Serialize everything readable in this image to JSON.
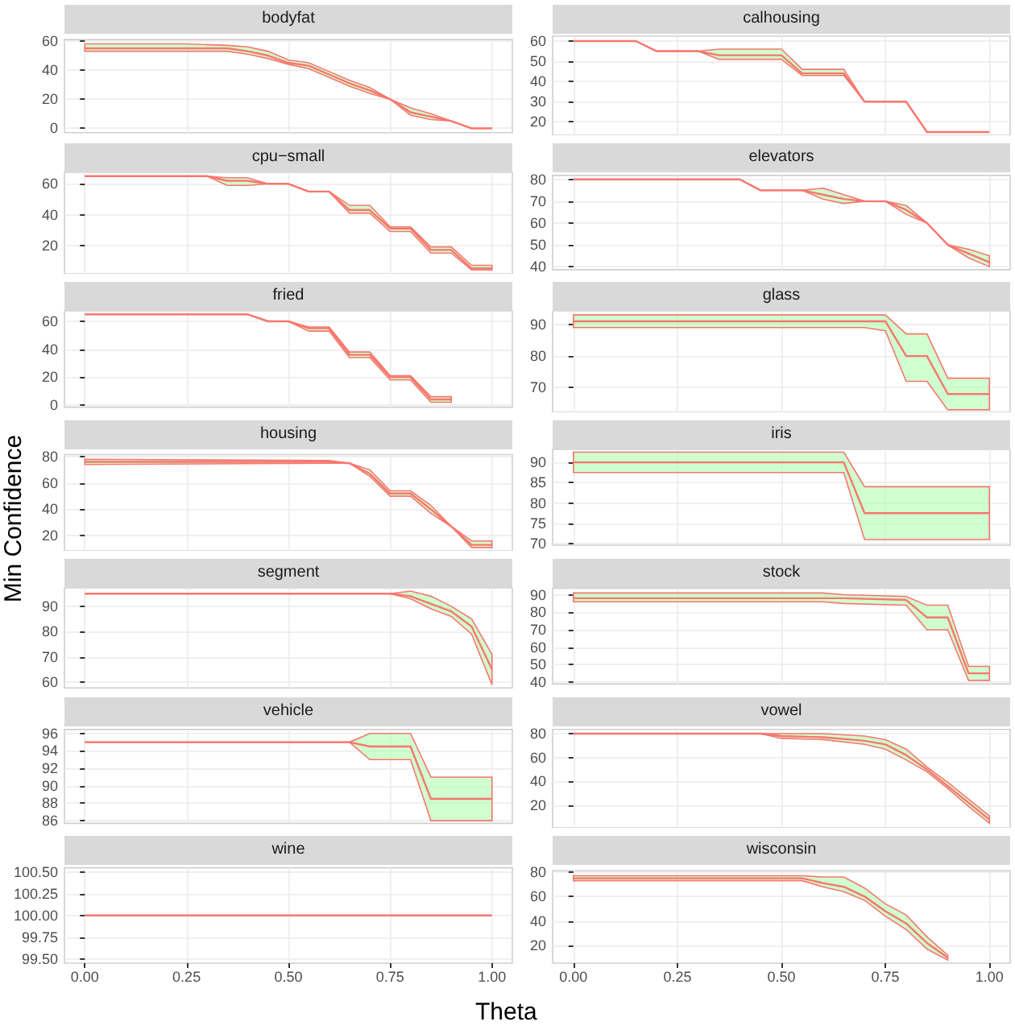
{
  "chart_data": [
    {
      "type": "line",
      "title": "bodyfat",
      "x": [
        0,
        0.25,
        0.35,
        0.4,
        0.45,
        0.5,
        0.55,
        0.6,
        0.65,
        0.7,
        0.75,
        0.8,
        0.85,
        0.9,
        0.95,
        1
      ],
      "series": [
        {
          "color": "#f8766d",
          "values": [
            55,
            55,
            55,
            53,
            50,
            45,
            43,
            37,
            31,
            26,
            20,
            11,
            8,
            5,
            0,
            0
          ],
          "lower": [
            53,
            53,
            53,
            51,
            48,
            44,
            41,
            35,
            29,
            24,
            20,
            9,
            6,
            5,
            0,
            0
          ],
          "upper": [
            58,
            58,
            57,
            56,
            53,
            47,
            45,
            39,
            33,
            28,
            20,
            14,
            10,
            5,
            0,
            0
          ]
        }
      ],
      "xlim": [
        -0.05,
        1.05
      ],
      "xticks": [
        0,
        0.25,
        0.5,
        0.75,
        1
      ],
      "ylim": [
        -3,
        61
      ],
      "yticks": [
        0,
        20,
        40,
        60
      ],
      "grid": true,
      "tick_labels": "y"
    },
    {
      "type": "line",
      "title": "calhousing",
      "x": [
        0,
        0.15,
        0.2,
        0.3,
        0.35,
        0.5,
        0.55,
        0.65,
        0.7,
        0.8,
        0.85,
        1
      ],
      "series": [
        {
          "color": "#f8766d",
          "values": [
            60,
            60,
            55,
            55,
            53,
            53,
            44,
            44,
            30,
            30,
            15,
            15
          ],
          "lower": [
            60,
            60,
            55,
            55,
            51,
            51,
            43,
            43,
            30,
            30,
            15,
            15
          ],
          "upper": [
            60,
            60,
            55,
            55,
            56,
            56,
            46,
            46,
            30,
            30,
            15,
            15
          ]
        }
      ],
      "xlim": [
        -0.05,
        1.05
      ],
      "xticks": [
        0,
        0.25,
        0.5,
        0.75,
        1
      ],
      "ylim": [
        13.4,
        62.5
      ],
      "yticks": [
        20,
        30,
        40,
        50,
        60
      ],
      "grid": true,
      "tick_labels": "y"
    },
    {
      "type": "line",
      "title": "cpu−small",
      "x": [
        0,
        0.3,
        0.35,
        0.4,
        0.45,
        0.5,
        0.55,
        0.6,
        0.65,
        0.7,
        0.75,
        0.8,
        0.85,
        0.9,
        0.95,
        1
      ],
      "series": [
        {
          "color": "#f8766d",
          "values": [
            65,
            65,
            62,
            62,
            60,
            60,
            55,
            55,
            43,
            43,
            31,
            31,
            17,
            17,
            5,
            5
          ],
          "lower": [
            65,
            65,
            59,
            59,
            60,
            60,
            55,
            55,
            41,
            41,
            29,
            29,
            15,
            15,
            4,
            4
          ],
          "upper": [
            65,
            65,
            64,
            64,
            60,
            60,
            55,
            55,
            46,
            46,
            32,
            32,
            19,
            19,
            7,
            7
          ]
        }
      ],
      "xlim": [
        -0.05,
        1.05
      ],
      "xticks": [
        0,
        0.25,
        0.5,
        0.75,
        1
      ],
      "ylim": [
        1.5,
        67.5
      ],
      "yticks": [
        20,
        40,
        60
      ],
      "grid": true,
      "tick_labels": "y"
    },
    {
      "type": "line",
      "title": "elevators",
      "x": [
        0,
        0.4,
        0.45,
        0.55,
        0.6,
        0.65,
        0.7,
        0.75,
        0.8,
        0.85,
        0.9,
        0.95,
        1
      ],
      "series": [
        {
          "color": "#f8766d",
          "values": [
            80,
            80,
            75,
            75,
            73,
            71,
            70,
            70,
            66,
            60,
            50,
            46,
            42
          ],
          "lower": [
            80,
            80,
            75,
            75,
            71,
            69,
            70,
            70,
            64,
            60,
            50,
            44,
            40
          ],
          "upper": [
            80,
            80,
            75,
            75,
            76,
            73,
            70,
            70,
            68,
            60,
            50,
            48,
            45
          ]
        }
      ],
      "xlim": [
        -0.05,
        1.05
      ],
      "xticks": [
        0,
        0.25,
        0.5,
        0.75,
        1
      ],
      "ylim": [
        38.6,
        81.8
      ],
      "yticks": [
        40,
        50,
        60,
        70,
        80
      ],
      "grid": true,
      "tick_labels": "y"
    },
    {
      "type": "line",
      "title": "fried",
      "x": [
        0,
        0.4,
        0.45,
        0.5,
        0.55,
        0.6,
        0.65,
        0.7,
        0.75,
        0.8,
        0.85,
        0.9
      ],
      "series": [
        {
          "color": "#f8766d",
          "values": [
            65,
            65,
            60,
            60,
            55,
            55,
            36,
            36,
            20,
            20,
            4,
            4
          ],
          "lower": [
            65,
            65,
            60,
            60,
            53,
            53,
            34,
            34,
            18,
            18,
            2,
            2
          ],
          "upper": [
            65,
            65,
            60,
            60,
            56,
            56,
            38,
            38,
            21,
            21,
            6,
            6
          ]
        }
      ],
      "xlim": [
        -0.05,
        1.05
      ],
      "xticks": [
        0,
        0.25,
        0.5,
        0.75,
        1
      ],
      "ylim": [
        -1.5,
        67.5
      ],
      "yticks": [
        0,
        20,
        40,
        60
      ],
      "grid": true,
      "tick_labels": "y"
    },
    {
      "type": "line",
      "title": "glass",
      "x": [
        0,
        0.7,
        0.75,
        0.8,
        0.85,
        0.9,
        1
      ],
      "series": [
        {
          "color": "#f8766d",
          "values": [
            91,
            91,
            91,
            80,
            80,
            68,
            68
          ],
          "lower": [
            89,
            89,
            88,
            72,
            72,
            63,
            63
          ],
          "upper": [
            93,
            93,
            93,
            87,
            87,
            73,
            73
          ]
        }
      ],
      "xlim": [
        -0.05,
        1.05
      ],
      "xticks": [
        0,
        0.25,
        0.5,
        0.75,
        1
      ],
      "ylim": [
        62.2,
        94.3
      ],
      "yticks": [
        70,
        80,
        90
      ],
      "grid": true,
      "tick_labels": "y"
    },
    {
      "type": "line",
      "title": "housing",
      "ylabel": "Min Confidence",
      "x": [
        0,
        0.6,
        0.65,
        0.7,
        0.75,
        0.8,
        0.85,
        0.9,
        0.95,
        1
      ],
      "series": [
        {
          "color": "#f8766d",
          "values": [
            76,
            76,
            75,
            67,
            52,
            52,
            40,
            27,
            13,
            13
          ],
          "lower": [
            74,
            75,
            75,
            65,
            50,
            50,
            37,
            27,
            11,
            11
          ],
          "upper": [
            78,
            77,
            75,
            70,
            54,
            54,
            43,
            27,
            16,
            16
          ]
        }
      ],
      "xlim": [
        -0.05,
        1.05
      ],
      "xticks": [
        0,
        0.25,
        0.5,
        0.75,
        1
      ],
      "ylim": [
        8.5,
        81.5
      ],
      "yticks": [
        20,
        40,
        60,
        80
      ],
      "grid": true,
      "tick_labels": "y"
    },
    {
      "type": "line",
      "title": "iris",
      "x": [
        0,
        0.65,
        0.7,
        1
      ],
      "series": [
        {
          "color": "#f8766d",
          "values": [
            90,
            90,
            77.5,
            77.5
          ],
          "lower": [
            87.5,
            87.5,
            71,
            71
          ],
          "upper": [
            92.5,
            92.5,
            84,
            84
          ]
        }
      ],
      "xlim": [
        -0.05,
        1.05
      ],
      "xticks": [
        0,
        0.25,
        0.5,
        0.75,
        1
      ],
      "ylim": [
        69.6,
        93.2
      ],
      "yticks": [
        70,
        75,
        80,
        85,
        90
      ],
      "grid": true,
      "tick_labels": "y"
    },
    {
      "type": "line",
      "title": "segment",
      "x": [
        0,
        0.75,
        0.8,
        0.85,
        0.9,
        0.95,
        1
      ],
      "series": [
        {
          "color": "#f8766d",
          "values": [
            95,
            95,
            94,
            91,
            88,
            82,
            65
          ],
          "lower": [
            95,
            95,
            93,
            89,
            86,
            79,
            59
          ],
          "upper": [
            95,
            95,
            96,
            94,
            90,
            85,
            71
          ]
        }
      ],
      "xlim": [
        -0.05,
        1.05
      ],
      "xticks": [
        0,
        0.25,
        0.5,
        0.75,
        1
      ],
      "ylim": [
        57.7,
        97.3
      ],
      "yticks": [
        60,
        70,
        80,
        90
      ],
      "grid": true,
      "tick_labels": "y"
    },
    {
      "type": "line",
      "title": "stock",
      "x": [
        0,
        0.6,
        0.65,
        0.8,
        0.85,
        0.9,
        0.95,
        1
      ],
      "series": [
        {
          "color": "#f8766d",
          "values": [
            88,
            88,
            88,
            87,
            77,
            77,
            45,
            45
          ],
          "lower": [
            86,
            86,
            85,
            84,
            70,
            70,
            41,
            41
          ],
          "upper": [
            91,
            91,
            90,
            89,
            84,
            84,
            49,
            49
          ]
        }
      ],
      "xlim": [
        -0.05,
        1.05
      ],
      "xticks": [
        0,
        0.25,
        0.5,
        0.75,
        1
      ],
      "ylim": [
        38.9,
        93.7
      ],
      "yticks": [
        40,
        50,
        60,
        70,
        80,
        90
      ],
      "grid": true,
      "tick_labels": "y"
    },
    {
      "type": "line",
      "title": "vehicle",
      "x": [
        0,
        0.65,
        0.7,
        0.8,
        0.85,
        1
      ],
      "series": [
        {
          "color": "#f8766d",
          "values": [
            95,
            95,
            94.5,
            94.5,
            88.5,
            88.5
          ],
          "lower": [
            95,
            95,
            93,
            93,
            86,
            86
          ],
          "upper": [
            95,
            95,
            96,
            96,
            91,
            91
          ]
        }
      ],
      "xlim": [
        -0.05,
        1.05
      ],
      "xticks": [
        0,
        0.25,
        0.5,
        0.75,
        1
      ],
      "ylim": [
        85.7,
        96.45
      ],
      "yticks": [
        86,
        88,
        90,
        92,
        94,
        96
      ],
      "grid": true,
      "tick_labels": "y"
    },
    {
      "type": "line",
      "title": "vowel",
      "x": [
        0,
        0.45,
        0.5,
        0.6,
        0.7,
        0.75,
        0.8,
        0.85,
        0.9,
        0.95,
        1
      ],
      "series": [
        {
          "color": "#f8766d",
          "values": [
            80,
            80,
            78,
            77,
            74,
            71,
            62,
            50,
            36,
            22,
            8
          ],
          "lower": [
            80,
            80,
            76,
            75,
            71,
            67,
            58,
            48,
            34,
            19,
            5
          ],
          "upper": [
            80,
            80,
            80,
            80,
            78,
            75,
            67,
            52,
            39,
            25,
            11
          ]
        }
      ],
      "xlim": [
        -0.05,
        1.05
      ],
      "xticks": [
        0,
        0.25,
        0.5,
        0.75,
        1
      ],
      "ylim": [
        1,
        83.5
      ],
      "yticks": [
        20,
        40,
        60,
        80
      ],
      "grid": true,
      "tick_labels": "y"
    },
    {
      "type": "line",
      "title": "wine",
      "xlabel": "Theta",
      "x": [
        0,
        1
      ],
      "series": [
        {
          "color": "#f8766d",
          "values": [
            100,
            100
          ]
        }
      ],
      "xlim": [
        -0.05,
        1.05
      ],
      "xticks": [
        {
          "value": 0,
          "label": "0.00"
        },
        {
          "value": 0.25,
          "label": "0.25"
        },
        {
          "value": 0.5,
          "label": "0.50"
        },
        {
          "value": 0.75,
          "label": "0.75"
        },
        {
          "value": 1,
          "label": "1.00"
        }
      ],
      "ylim": [
        99.45,
        100.55
      ],
      "yticks": [
        {
          "value": 99.5,
          "label": "99.50"
        },
        {
          "value": 99.75,
          "label": "99.75"
        },
        {
          "value": 100,
          "label": "100.00"
        },
        {
          "value": 100.25,
          "label": "100.25"
        },
        {
          "value": 100.5,
          "label": "100.50"
        }
      ],
      "grid": true
    },
    {
      "type": "line",
      "title": "wisconsin",
      "x": [
        0,
        0.55,
        0.6,
        0.65,
        0.7,
        0.75,
        0.8,
        0.85,
        0.9
      ],
      "series": [
        {
          "color": "#f8766d",
          "values": [
            75,
            75,
            71,
            68,
            60,
            48,
            38,
            22,
            10
          ],
          "lower": [
            73,
            73,
            68,
            64,
            57,
            44,
            33,
            17,
            8
          ],
          "upper": [
            77,
            77,
            76,
            76,
            67,
            54,
            45,
            27,
            12
          ]
        }
      ],
      "xlim": [
        -0.05,
        1.05
      ],
      "xticks": [
        {
          "value": 0,
          "label": "0.00"
        },
        {
          "value": 0.25,
          "label": "0.25"
        },
        {
          "value": 0.5,
          "label": "0.50"
        },
        {
          "value": 0.75,
          "label": "0.75"
        },
        {
          "value": 1,
          "label": "1.00"
        }
      ],
      "ylim": [
        5.5,
        81.2
      ],
      "yticks": [
        20,
        40,
        60,
        80
      ],
      "grid": true
    }
  ]
}
